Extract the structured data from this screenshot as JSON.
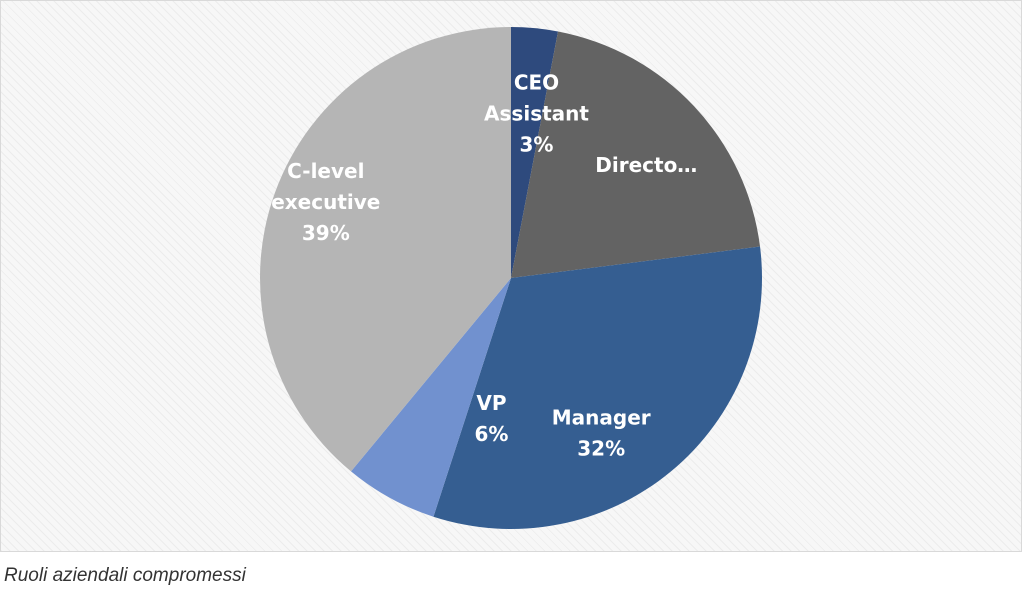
{
  "caption": "Ruoli aziendali compromessi",
  "chart_data": {
    "type": "pie",
    "title": "",
    "start_angle_deg": 0,
    "direction": "clockwise",
    "slices": [
      {
        "name": "CEO Assistant",
        "value": 3,
        "label": [
          "CEO",
          "Assistant",
          "3%"
        ],
        "color": "#2e4a7d"
      },
      {
        "name": "Director",
        "value": 20,
        "label": [
          "Directo…"
        ],
        "color": "#636363"
      },
      {
        "name": "Manager",
        "value": 32,
        "label": [
          "Manager",
          "32%"
        ],
        "color": "#355e91"
      },
      {
        "name": "VP",
        "value": 6,
        "label": [
          "VP",
          "6%"
        ],
        "color": "#7191cf"
      },
      {
        "name": "C-level executive",
        "value": 39,
        "label": [
          "C-level",
          "executive",
          "39%"
        ],
        "color": "#b5b5b5"
      }
    ]
  }
}
